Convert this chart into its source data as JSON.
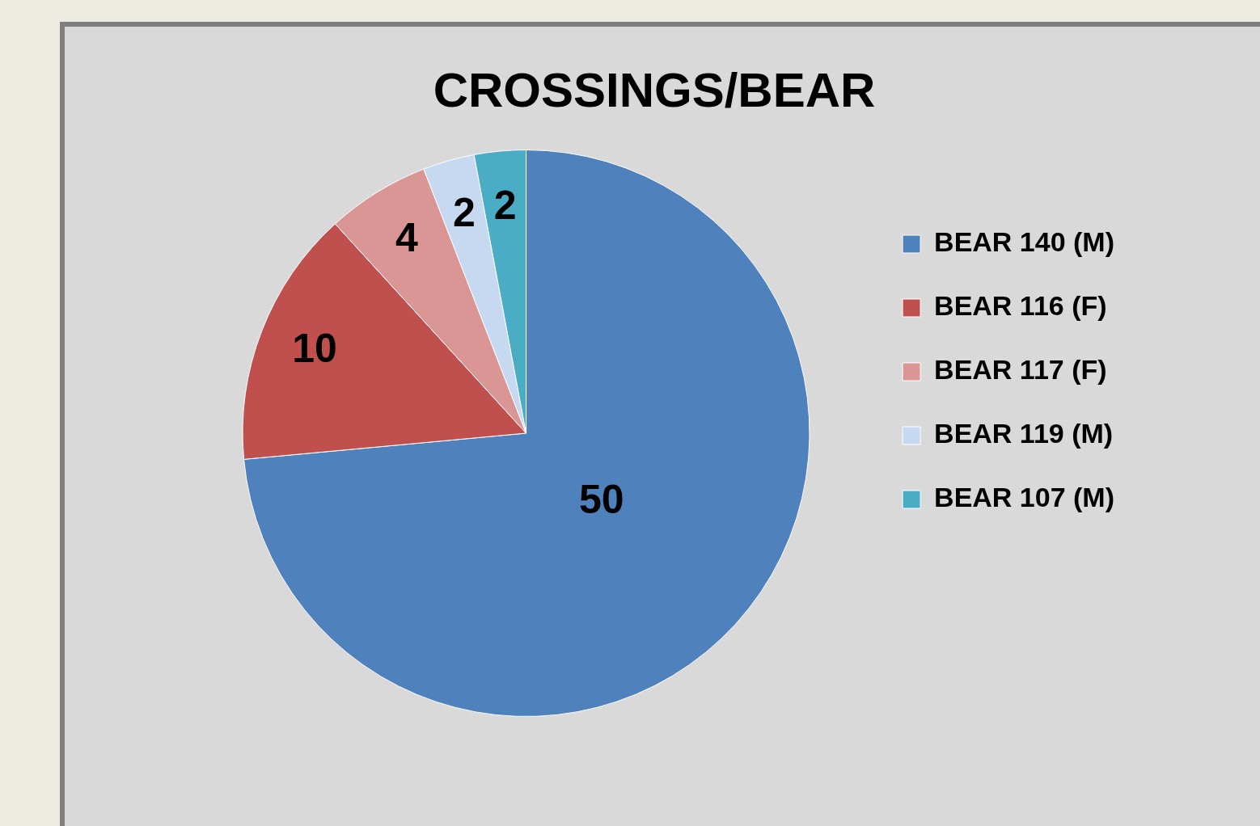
{
  "chart_data": {
    "type": "pie",
    "title": "CROSSINGS/BEAR",
    "categories": [
      "BEAR 140 (M)",
      "BEAR 116 (F)",
      "BEAR 117 (F)",
      "BEAR 119 (M)",
      "BEAR 107 (M)"
    ],
    "values": [
      50,
      10,
      4,
      2,
      2
    ],
    "colors": [
      "#4f81bd",
      "#c0504d",
      "#d99694",
      "#c6d9f1",
      "#4bacc6"
    ],
    "data_labels": true,
    "legend": "right"
  }
}
